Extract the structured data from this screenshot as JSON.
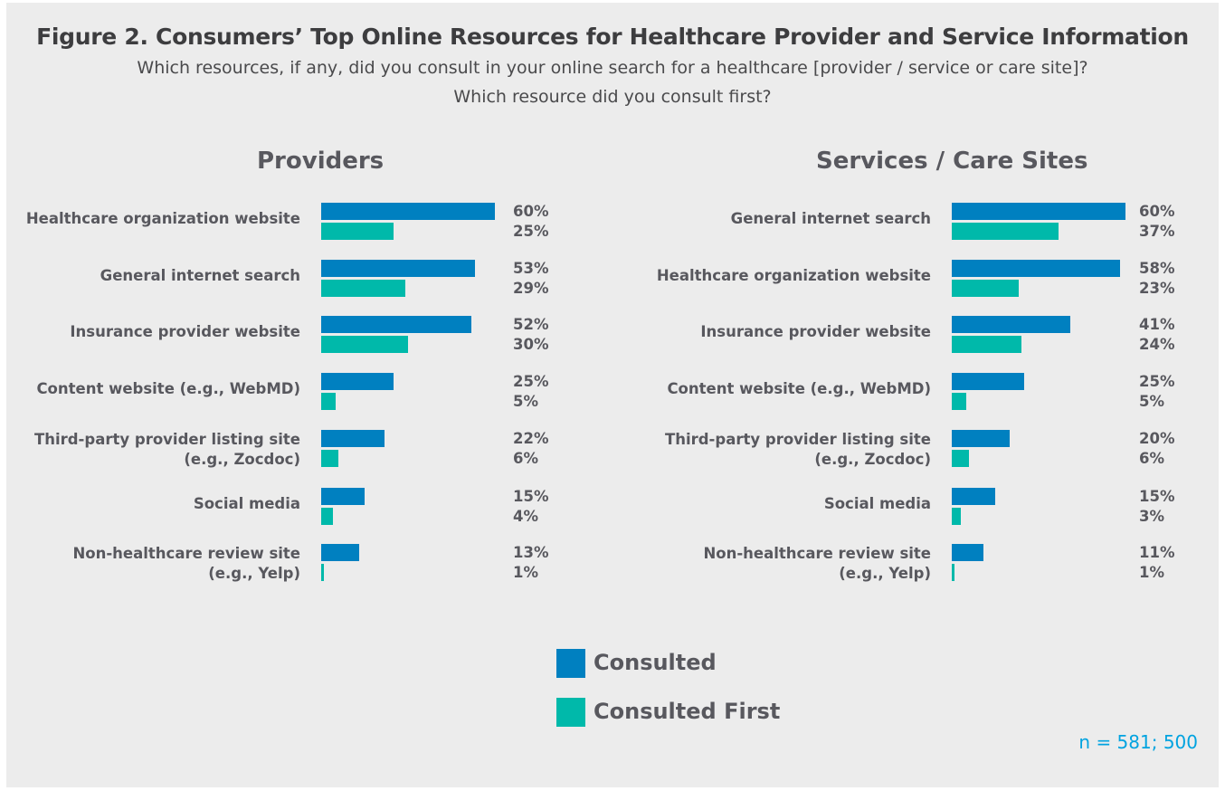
{
  "chart_data": {
    "type": "bar",
    "orientation": "horizontal",
    "title": "Figure 2. Consumers’ Top Online Resources for Healthcare Provider and Service Information",
    "subtitle": [
      "Which resources, if any, did you consult in your online search for a healthcare [provider / service or care site]?",
      "Which resource did you consult first?"
    ],
    "colors": {
      "Consulted": "#0080c0",
      "Consulted First": "#00b9aa"
    },
    "legend": [
      "Consulted",
      "Consulted First"
    ],
    "legend_position": "bottom-center",
    "note": "n = 581; 500",
    "xlim": [
      0,
      60
    ],
    "panels": [
      {
        "title": "Providers",
        "categories": [
          [
            "Healthcare organization website"
          ],
          [
            "General internet search"
          ],
          [
            "Insurance provider website"
          ],
          [
            "Content website (e.g., WebMD)"
          ],
          [
            "Third-party provider listing site",
            "(e.g., Zocdoc)"
          ],
          [
            "Social media"
          ],
          [
            "Non-healthcare review site",
            "(e.g., Yelp)"
          ]
        ],
        "series": [
          {
            "name": "Consulted",
            "values": [
              60,
              53,
              52,
              25,
              22,
              15,
              13
            ]
          },
          {
            "name": "Consulted First",
            "values": [
              25,
              29,
              30,
              5,
              6,
              4,
              1
            ]
          }
        ]
      },
      {
        "title": "Services / Care Sites",
        "categories": [
          [
            "General internet search"
          ],
          [
            "Healthcare organization website"
          ],
          [
            "Insurance provider website"
          ],
          [
            "Content website (e.g., WebMD)"
          ],
          [
            "Third-party provider listing site",
            "(e.g., Zocdoc)"
          ],
          [
            "Social media"
          ],
          [
            "Non-healthcare review site",
            "(e.g., Yelp)"
          ]
        ],
        "series": [
          {
            "name": "Consulted",
            "values": [
              60,
              58,
              41,
              25,
              20,
              15,
              11
            ]
          },
          {
            "name": "Consulted First",
            "values": [
              37,
              23,
              24,
              5,
              6,
              3,
              1
            ]
          }
        ]
      }
    ]
  }
}
